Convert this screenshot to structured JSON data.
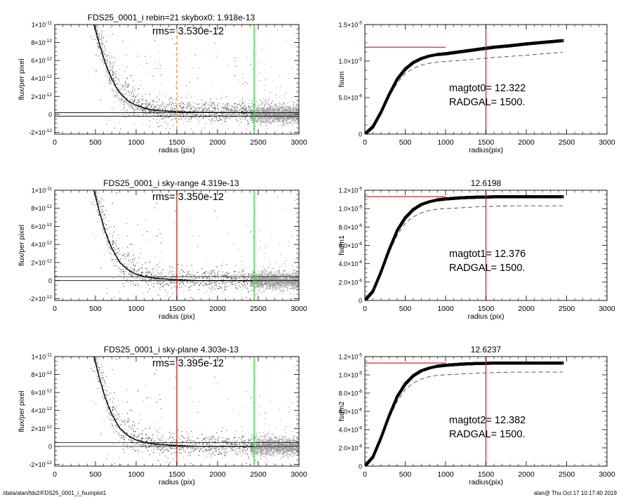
{
  "footer": {
    "path": "/data/alan/fds2/FDS25_0001_i_fsumplot1",
    "stamp": "alan@  Thu Oct 17 10:17:40 2019"
  },
  "colors": {
    "scatter": "#9b9b9b",
    "scatter_dark": "#333333",
    "profile": "#000000",
    "red_line": "#cc2b2b",
    "green_line": "#33dd33",
    "orange_dash": "#f0a040",
    "dashed_curve": "#444444"
  },
  "chart_data": [
    {
      "type": "scatter",
      "title": "FDS25_0001_i rebin=21    skybox0:  1.918e-13",
      "annotation": "rms= 3.530e-12",
      "xlabel": "radius (pix)",
      "ylabel": "flux/per pixel",
      "xlim": [
        0,
        3000
      ],
      "ylim": [
        -2.2e-12,
        1e-11
      ],
      "xticks": [
        0,
        500,
        1000,
        1500,
        2000,
        2500,
        3000
      ],
      "xtick_labels": [
        "0",
        "500",
        "1000",
        "1500",
        "2000",
        "2500",
        "3000"
      ],
      "yticks": [
        -2e-12,
        0,
        2e-12,
        4e-12,
        6e-12,
        8e-12,
        1e-11
      ],
      "ytick_labels": [
        {
          "base": "-2×10",
          "exp": "-12"
        },
        {
          "base": "0",
          "exp": ""
        },
        {
          "base": "2×10",
          "exp": "-12"
        },
        {
          "base": "4×10",
          "exp": "-12"
        },
        {
          "base": "6×10",
          "exp": "-12"
        },
        {
          "base": "8×10",
          "exp": "-12"
        },
        {
          "base": "1×10",
          "exp": "-11"
        }
      ],
      "profile": {
        "x": [
          480,
          550,
          600,
          650,
          700,
          750,
          800,
          900,
          1000,
          1100,
          1200,
          1300,
          1400,
          1500,
          1600,
          1700,
          1800,
          1900,
          2000,
          2100,
          2200,
          2300,
          2400,
          2450
        ],
        "y": [
          1e-11,
          7.8e-12,
          6.3e-12,
          5e-12,
          4e-12,
          3.1e-12,
          2.4e-12,
          1.5e-12,
          1e-12,
          7e-13,
          5e-13,
          4e-13,
          3.5e-13,
          3e-13,
          2.5e-13,
          2.4e-13,
          2.2e-13,
          2.1e-13,
          2e-13,
          2e-13,
          2e-13,
          2e-13,
          1.9e-13,
          1.9e-13
        ]
      },
      "hlines": [
        1.918e-13,
        -2e-13
      ],
      "vlines": [
        {
          "x": 1500,
          "style": "orange_dash"
        },
        {
          "x": 2450,
          "style": "green_line"
        }
      ]
    },
    {
      "type": "line",
      "title": "",
      "xlabel": "radius(pix)",
      "ylabel": "fsum",
      "xlim": [
        0,
        3000
      ],
      "ylim": [
        0,
        1.5e-05
      ],
      "xticks": [
        0,
        500,
        1000,
        1500,
        2000,
        2500,
        3000
      ],
      "xtick_labels": [
        "0",
        "500",
        "1000",
        "1500",
        "2000",
        "2500",
        "3000"
      ],
      "yticks": [
        0,
        5e-06,
        1e-05,
        1.5e-05
      ],
      "ytick_labels": [
        {
          "base": "0",
          "exp": ""
        },
        {
          "base": "5.0×10",
          "exp": "-6"
        },
        {
          "base": "1.0×10",
          "exp": "-5"
        },
        {
          "base": "1.5×10",
          "exp": "-5"
        }
      ],
      "annotations": [
        "magtot0=  12.322",
        "RADGAL=   1500."
      ],
      "curve": {
        "x": [
          0,
          100,
          200,
          300,
          400,
          500,
          600,
          700,
          800,
          900,
          1000,
          1200,
          1400,
          1600,
          1800,
          2000,
          2200,
          2450
        ],
        "y": [
          0,
          1e-06,
          3e-06,
          5.4e-06,
          7.5e-06,
          8.9e-06,
          9.8e-06,
          1.035e-05,
          1.07e-05,
          1.09e-05,
          1.1e-05,
          1.13e-05,
          1.16e-05,
          1.19e-05,
          1.21e-05,
          1.235e-05,
          1.255e-05,
          1.28e-05
        ]
      },
      "dashed": {
        "x": [
          0,
          100,
          200,
          300,
          400,
          500,
          600,
          700,
          800,
          900,
          1000,
          1200,
          1400,
          1600,
          1800,
          2000,
          2200,
          2450
        ],
        "y": [
          0,
          9e-07,
          2.8e-06,
          5.1e-06,
          7e-06,
          8.3e-06,
          9e-06,
          9.45e-06,
          9.7e-06,
          9.85e-06,
          9.95e-06,
          1.01e-05,
          1.03e-05,
          1.05e-05,
          1.065e-05,
          1.08e-05,
          1.1e-05,
          1.12e-05
        ]
      },
      "red_hline": {
        "x0": 0,
        "x1": 1000,
        "y": 1.19e-05
      },
      "red_vline": {
        "x": 1500
      }
    },
    {
      "type": "scatter",
      "title": "FDS25_0001_i sky-range  4.319e-13",
      "annotation": "rms= 3.350e-12",
      "xlabel": "radius (pix)",
      "ylabel": "flux/per pixel",
      "xlim": [
        0,
        3000
      ],
      "ylim": [
        -2.2e-12,
        1e-11
      ],
      "xticks": [
        0,
        500,
        1000,
        1500,
        2000,
        2500,
        3000
      ],
      "xtick_labels": [
        "0",
        "500",
        "1000",
        "1500",
        "2000",
        "2500",
        "3000"
      ],
      "yticks": [
        -2e-12,
        0,
        2e-12,
        4e-12,
        6e-12,
        8e-12,
        1e-11
      ],
      "ytick_labels": [
        {
          "base": "-2×10",
          "exp": "-12"
        },
        {
          "base": "0",
          "exp": ""
        },
        {
          "base": "2×10",
          "exp": "-12"
        },
        {
          "base": "4×10",
          "exp": "-12"
        },
        {
          "base": "6×10",
          "exp": "-12"
        },
        {
          "base": "8×10",
          "exp": "-12"
        },
        {
          "base": "1×10",
          "exp": "-11"
        }
      ],
      "profile": {
        "x": [
          480,
          550,
          600,
          650,
          700,
          750,
          800,
          900,
          1000,
          1100,
          1200,
          1300,
          1400,
          1500,
          1600,
          1700,
          1800,
          1900,
          2000,
          2100,
          2200,
          2300,
          2400,
          2450
        ],
        "y": [
          1e-11,
          7.6e-12,
          6e-12,
          4.7e-12,
          3.6e-12,
          2.8e-12,
          2e-12,
          1.2e-12,
          7e-13,
          4.5e-13,
          3e-13,
          2e-13,
          1.5e-13,
          1e-13,
          5e-14,
          0,
          0,
          0,
          0,
          0,
          0,
          0,
          0,
          0
        ]
      },
      "hlines": [
        4.319e-13,
        0
      ],
      "vlines": [
        {
          "x": 1500,
          "style": "red_line"
        },
        {
          "x": 2450,
          "style": "green_line"
        }
      ]
    },
    {
      "type": "line",
      "title": "12.6198",
      "xlabel": "radius (pix)",
      "ylabel": "fsum1",
      "xlim": [
        0,
        3000
      ],
      "ylim": [
        0,
        1.2e-05
      ],
      "xticks": [
        0,
        500,
        1000,
        1500,
        2000,
        2500,
        3000
      ],
      "xtick_labels": [
        "0",
        "500",
        "1000",
        "1500",
        "2000",
        "2500",
        "3000"
      ],
      "yticks": [
        0,
        2e-06,
        4e-06,
        6e-06,
        8e-06,
        1e-05,
        1.2e-05
      ],
      "ytick_labels": [
        {
          "base": "0",
          "exp": ""
        },
        {
          "base": "2.0×10",
          "exp": "-6"
        },
        {
          "base": "4.0×10",
          "exp": "-6"
        },
        {
          "base": "6.0×10",
          "exp": "-6"
        },
        {
          "base": "8.0×10",
          "exp": "-6"
        },
        {
          "base": "1.0×10",
          "exp": "-5"
        },
        {
          "base": "1.2×10",
          "exp": "-5"
        }
      ],
      "annotations": [
        "magtot1=  12.376",
        "RADGAL=   1500."
      ],
      "curve": {
        "x": [
          0,
          100,
          200,
          300,
          400,
          500,
          600,
          700,
          800,
          900,
          1000,
          1200,
          1400,
          1600,
          1800,
          2000,
          2200,
          2450
        ],
        "y": [
          0,
          1e-06,
          3.1e-06,
          5.5e-06,
          7.6e-06,
          9e-06,
          9.9e-06,
          1.045e-05,
          1.075e-05,
          1.095e-05,
          1.105e-05,
          1.118e-05,
          1.125e-05,
          1.128e-05,
          1.13e-05,
          1.13e-05,
          1.13e-05,
          1.13e-05
        ]
      },
      "dashed": {
        "x": [
          0,
          100,
          200,
          300,
          400,
          500,
          600,
          700,
          800,
          900,
          1000,
          1200,
          1400,
          1600,
          1800,
          2000,
          2200,
          2450
        ],
        "y": [
          0,
          9e-07,
          2.9e-06,
          5.2e-06,
          7.1e-06,
          8.4e-06,
          9.1e-06,
          9.55e-06,
          9.8e-06,
          9.95e-06,
          1e-05,
          1.01e-05,
          1.02e-05,
          1.025e-05,
          1.03e-05,
          1.03e-05,
          1.03e-05,
          1.03e-05
        ]
      },
      "red_hline": {
        "x0": 0,
        "x1": 1000,
        "y": 1.13e-05
      },
      "red_vline": {
        "x": 1500
      }
    },
    {
      "type": "scatter",
      "title": "FDS25_0001_i sky-plane  4.303e-13",
      "annotation": "rms= 3.395e-12",
      "xlabel": "radius (pix)",
      "ylabel": "flux/per pixel",
      "xlim": [
        0,
        3000
      ],
      "ylim": [
        -2.2e-12,
        1e-11
      ],
      "xticks": [
        0,
        500,
        1000,
        1500,
        2000,
        2500,
        3000
      ],
      "xtick_labels": [
        "0",
        "500",
        "1000",
        "1500",
        "2000",
        "2500",
        "3000"
      ],
      "yticks": [
        -2e-12,
        0,
        2e-12,
        4e-12,
        6e-12,
        8e-12,
        1e-11
      ],
      "ytick_labels": [
        {
          "base": "-2×10",
          "exp": "-12"
        },
        {
          "base": "0",
          "exp": ""
        },
        {
          "base": "2×10",
          "exp": "-12"
        },
        {
          "base": "4×10",
          "exp": "-12"
        },
        {
          "base": "6×10",
          "exp": "-12"
        },
        {
          "base": "8×10",
          "exp": "-12"
        },
        {
          "base": "1×10",
          "exp": "-11"
        }
      ],
      "profile": {
        "x": [
          480,
          550,
          600,
          650,
          700,
          750,
          800,
          900,
          1000,
          1100,
          1200,
          1300,
          1400,
          1500,
          1600,
          1700,
          1800,
          1900,
          2000,
          2100,
          2200,
          2300,
          2400,
          2450
        ],
        "y": [
          1e-11,
          7.6e-12,
          6e-12,
          4.7e-12,
          3.6e-12,
          2.8e-12,
          2e-12,
          1.2e-12,
          7e-13,
          4.5e-13,
          3e-13,
          2e-13,
          1.5e-13,
          1e-13,
          5e-14,
          0,
          0,
          0,
          0,
          0,
          0,
          0,
          0,
          0
        ]
      },
      "hlines": [
        4.303e-13,
        0
      ],
      "vlines": [
        {
          "x": 1500,
          "style": "red_line"
        },
        {
          "x": 2450,
          "style": "green_line"
        }
      ]
    },
    {
      "type": "line",
      "title": "12.6237",
      "xlabel": "radius(pix)",
      "ylabel": "fsum2",
      "xlim": [
        0,
        3000
      ],
      "ylim": [
        0,
        1.2e-05
      ],
      "xticks": [
        0,
        500,
        1000,
        1500,
        2000,
        2500,
        3000
      ],
      "xtick_labels": [
        "0",
        "500",
        "1000",
        "1500",
        "2000",
        "2500",
        "3000"
      ],
      "yticks": [
        0,
        2e-06,
        4e-06,
        6e-06,
        8e-06,
        1e-05,
        1.2e-05
      ],
      "ytick_labels": [
        {
          "base": "0",
          "exp": ""
        },
        {
          "base": "2.0×10",
          "exp": "-6"
        },
        {
          "base": "4.0×10",
          "exp": "-6"
        },
        {
          "base": "6.0×10",
          "exp": "-6"
        },
        {
          "base": "8.0×10",
          "exp": "-6"
        },
        {
          "base": "1.0×10",
          "exp": "-5"
        },
        {
          "base": "1.2×10",
          "exp": "-5"
        }
      ],
      "annotations": [
        "magtot2=  12.382",
        "RADGAL=   1500."
      ],
      "curve": {
        "x": [
          0,
          100,
          200,
          300,
          400,
          500,
          600,
          700,
          800,
          900,
          1000,
          1200,
          1400,
          1600,
          1800,
          2000,
          2200,
          2450
        ],
        "y": [
          0,
          1e-06,
          3.1e-06,
          5.5e-06,
          7.6e-06,
          9e-06,
          9.9e-06,
          1.045e-05,
          1.075e-05,
          1.095e-05,
          1.105e-05,
          1.118e-05,
          1.125e-05,
          1.128e-05,
          1.13e-05,
          1.13e-05,
          1.13e-05,
          1.13e-05
        ]
      },
      "dashed": {
        "x": [
          0,
          100,
          200,
          300,
          400,
          500,
          600,
          700,
          800,
          900,
          1000,
          1200,
          1400,
          1600,
          1800,
          2000,
          2200,
          2450
        ],
        "y": [
          0,
          9e-07,
          2.9e-06,
          5.2e-06,
          7.1e-06,
          8.4e-06,
          9.1e-06,
          9.55e-06,
          9.8e-06,
          9.95e-06,
          1e-05,
          1.01e-05,
          1.02e-05,
          1.025e-05,
          1.03e-05,
          1.03e-05,
          1.03e-05,
          1.03e-05
        ]
      },
      "red_hline": {
        "x0": 0,
        "x1": 1000,
        "y": 1.13e-05
      },
      "red_vline": {
        "x": 1500
      }
    }
  ]
}
